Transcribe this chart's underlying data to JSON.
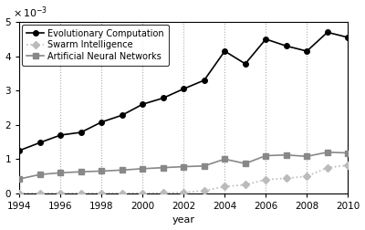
{
  "years": [
    1994,
    1995,
    1996,
    1997,
    1998,
    1999,
    2000,
    2001,
    2002,
    2003,
    2004,
    2005,
    2006,
    2007,
    2008,
    2009,
    2010
  ],
  "evolutionary_computation": [
    0.00125,
    0.00148,
    0.0017,
    0.00178,
    0.00208,
    0.00228,
    0.0026,
    0.00278,
    0.00305,
    0.0033,
    0.00415,
    0.00378,
    0.0045,
    0.0043,
    0.00415,
    0.0047,
    0.00455
  ],
  "swarm_intelligence": [
    3e-06,
    4e-06,
    5e-06,
    6e-06,
    6e-06,
    7e-06,
    8e-06,
    1e-05,
    2.5e-05,
    8e-05,
    0.0002,
    0.00025,
    0.0004,
    0.00044,
    0.0005,
    0.00075,
    0.00082
  ],
  "artificial_neural_networks": [
    0.00042,
    0.00055,
    0.0006,
    0.00063,
    0.00065,
    0.00068,
    0.00072,
    0.00075,
    0.00078,
    0.0008,
    0.001,
    0.00087,
    0.0011,
    0.00112,
    0.00108,
    0.0012,
    0.00118
  ],
  "ec_color": "#000000",
  "si_color": "#bbbbbb",
  "ann_color": "#888888",
  "xlabel": "year",
  "ylim": [
    0,
    0.005
  ],
  "xlim": [
    1994,
    2010
  ],
  "yticks": [
    0,
    0.001,
    0.002,
    0.003,
    0.004,
    0.005
  ],
  "ytick_labels": [
    "0",
    "1",
    "2",
    "3",
    "4",
    "5"
  ],
  "xticks": [
    1994,
    1996,
    1998,
    2000,
    2002,
    2004,
    2006,
    2008,
    2010
  ],
  "legend_labels": [
    "Evolutionary Computation",
    "Swarm Intelligence",
    "Artificial Neural Networks"
  ]
}
